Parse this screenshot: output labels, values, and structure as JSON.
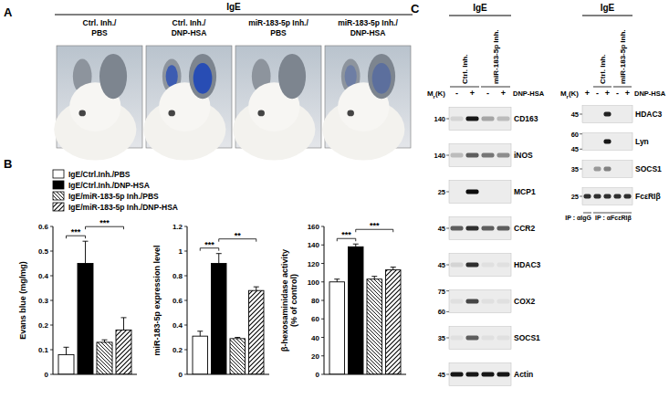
{
  "panel_a": {
    "label": "A",
    "header": "IgE",
    "columns": [
      [
        "Ctrl. Inh./",
        "PBS"
      ],
      [
        "Ctrl. Inh./",
        "DNP-HSA"
      ],
      [
        "miR-183-5p Inh./",
        "PBS"
      ],
      [
        "miR-183-5p Inh./",
        "DNP-HSA"
      ]
    ]
  },
  "panel_b": {
    "label": "B",
    "legend": [
      {
        "label": "IgE/Ctrl.Inh./PBS",
        "fill": "white"
      },
      {
        "label": "IgE/Ctrl.Inh./DNP-HSA",
        "fill": "black"
      },
      {
        "label": "IgE/miR-183-5p Inh./PBS",
        "fill": "hatch-back"
      },
      {
        "label": "IgE/miR-183-5p Inh./DNP-HSA",
        "fill": "hatch-forward"
      }
    ]
  },
  "chart_data": [
    {
      "type": "bar",
      "ylabel": [
        "Evans blue  (mg/mg)"
      ],
      "categories": [
        null,
        null,
        null,
        null
      ],
      "values": [
        0.08,
        0.45,
        0.13,
        0.18
      ],
      "errors": [
        0.03,
        0.09,
        0.01,
        0.05
      ],
      "ylim": [
        0,
        0.6
      ],
      "yticks": [
        0,
        0.1,
        0.2,
        0.3,
        0.4,
        0.5,
        0.6
      ],
      "significance": [
        {
          "from": 0,
          "to": 1,
          "label": "***"
        },
        {
          "from": 1,
          "to": 3,
          "label": "***"
        }
      ]
    },
    {
      "type": "bar",
      "ylabel": [
        "miR-183-5p expression level"
      ],
      "categories": [
        null,
        null,
        null,
        null
      ],
      "values": [
        0.31,
        0.9,
        0.29,
        0.68
      ],
      "errors": [
        0.04,
        0.08,
        0.01,
        0.03
      ],
      "ylim": [
        0,
        1.2
      ],
      "yticks": [
        0,
        0.2,
        0.4,
        0.6,
        0.8,
        1,
        1.2
      ],
      "significance": [
        {
          "from": 0,
          "to": 1,
          "label": "***"
        },
        {
          "from": 1,
          "to": 3,
          "label": "**"
        }
      ]
    },
    {
      "type": "bar",
      "ylabel": [
        "β-hexosaminidase activity",
        "(% of control)"
      ],
      "categories": [
        null,
        null,
        null,
        null
      ],
      "values": [
        100,
        138,
        103,
        113
      ],
      "errors": [
        3,
        3,
        3,
        3
      ],
      "ylim": [
        0,
        160
      ],
      "yticks": [
        0,
        20,
        40,
        60,
        80,
        100,
        120,
        140,
        160
      ],
      "significance": [
        {
          "from": 0,
          "to": 1,
          "label": "***"
        },
        {
          "from": 1,
          "to": 3,
          "label": "***"
        }
      ]
    }
  ],
  "panel_c": {
    "label": "C",
    "blots": [
      {
        "header": "IgE",
        "groups": [
          {
            "label": "Ctrl. Inh.",
            "lanes": [
              0,
              1
            ]
          },
          {
            "label": "miR-183-5p Inh.",
            "lanes": [
              2,
              3
            ]
          }
        ],
        "mr_label": "Mr(K)",
        "treatment": "DNP-HSA",
        "signs": [
          "-",
          "+",
          "-",
          "+"
        ],
        "rows": [
          {
            "name": "CD163",
            "mr": [
              "140"
            ],
            "bands": [
              0.1,
              0.9,
              0.3,
              0.2
            ]
          },
          {
            "name": "iNOS",
            "mr": [
              "140"
            ],
            "bands": [
              0.2,
              0.6,
              0.5,
              0.4
            ]
          },
          {
            "name": "MCP1",
            "mr": [
              "25"
            ],
            "bands": [
              0,
              0.95,
              0,
              0
            ]
          },
          {
            "name": "CCR2",
            "mr": [
              "45"
            ],
            "bands": [
              0.6,
              0.8,
              0.6,
              0.6
            ]
          },
          {
            "name": "HDAC3",
            "mr": [
              "45"
            ],
            "bands": [
              0.1,
              0.8,
              0.05,
              0.05
            ]
          },
          {
            "name": "COX2",
            "mr": [
              "75",
              "60"
            ],
            "bands": [
              0.05,
              0.7,
              0.05,
              0.05
            ]
          },
          {
            "name": "SOCS1",
            "mr": [
              "35"
            ],
            "bands": [
              0.05,
              0.6,
              0.05,
              0.05
            ]
          },
          {
            "name": "Actin",
            "mr": [
              "45"
            ],
            "bands": [
              0.9,
              0.9,
              0.9,
              0.9
            ]
          }
        ],
        "ip": []
      },
      {
        "header": "IgE",
        "groups": [
          {
            "label": "Ctrl. Inh.",
            "lanes": [
              1,
              2
            ]
          },
          {
            "label": "miR-183-5p Inh.",
            "lanes": [
              3,
              4
            ]
          }
        ],
        "mr_label": "Mr(K)",
        "treatment": "DNP-HSA",
        "signs": [
          "+",
          "-",
          "+",
          "-",
          "+"
        ],
        "rows": [
          {
            "name": "HDAC3",
            "mr": [
              "45"
            ],
            "bands": [
              0,
              0,
              0.85,
              0,
              0
            ]
          },
          {
            "name": "Lyn",
            "mr": [
              "60",
              "45"
            ],
            "bands": [
              0,
              0,
              0.9,
              0,
              0
            ]
          },
          {
            "name": "SOCS1",
            "mr": [
              "35"
            ],
            "bands": [
              0,
              0.35,
              0.45,
              0,
              0
            ]
          },
          {
            "name": "FcεRIβ",
            "mr": [
              "25"
            ],
            "bands": [
              0.8,
              0.8,
              0.8,
              0.8,
              0.8
            ]
          }
        ],
        "ip": [
          {
            "label": "IP : αIgG",
            "lanes": [
              0
            ]
          },
          {
            "label": "IP : αFcεRIβ",
            "lanes": [
              1,
              4
            ]
          }
        ]
      }
    ]
  }
}
